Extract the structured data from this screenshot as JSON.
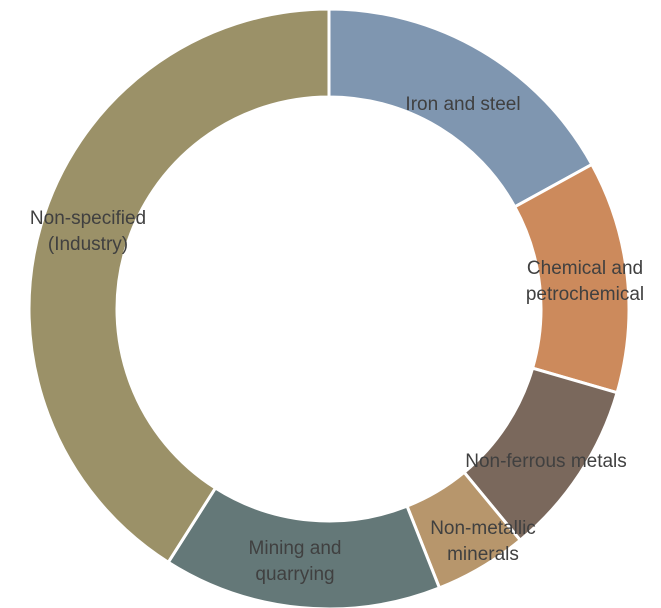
{
  "chart_data": {
    "type": "pie",
    "style": "donut",
    "title": "",
    "legend": "none",
    "slices": [
      {
        "label": [
          "Iron and steel"
        ],
        "value": 17,
        "color": "#7f96b0"
      },
      {
        "label": [
          "Chemical and",
          "petrochemical"
        ],
        "value": 12.5,
        "color": "#cc8a5c"
      },
      {
        "label": [
          "Non-ferrous metals"
        ],
        "value": 9.5,
        "color": "#7a685c"
      },
      {
        "label": [
          "Non-metallic",
          "minerals"
        ],
        "value": 5,
        "color": "#b7966c"
      },
      {
        "label": [
          "Mining and",
          "quarrying"
        ],
        "value": 15,
        "color": "#647878"
      },
      {
        "label": [
          "Non-specified",
          "(Industry)"
        ],
        "value": 41,
        "color": "#9b9168"
      }
    ]
  }
}
